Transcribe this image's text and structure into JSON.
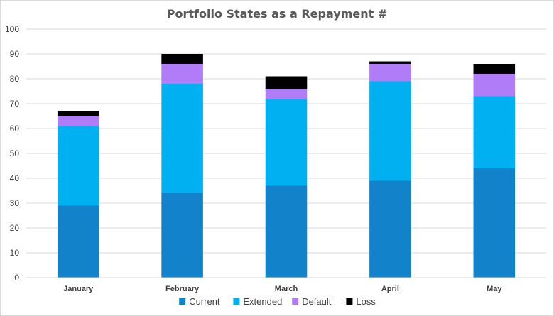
{
  "chart_data": {
    "type": "bar",
    "stacked": true,
    "title": "Portfolio States as a Repayment #",
    "xlabel": "",
    "ylabel": "",
    "categories": [
      "January",
      "February",
      "March",
      "April",
      "May"
    ],
    "ylim": [
      0,
      100
    ],
    "yticks": [
      0,
      10,
      20,
      30,
      40,
      50,
      60,
      70,
      80,
      90,
      100
    ],
    "grid": true,
    "legend_position": "bottom",
    "series": [
      {
        "name": "Current",
        "color": "#1283CA",
        "values": [
          29,
          34,
          37,
          39,
          44
        ]
      },
      {
        "name": "Extended",
        "color": "#00B0F0",
        "values": [
          32,
          44,
          35,
          40,
          29
        ]
      },
      {
        "name": "Default",
        "color": "#B07CF8",
        "values": [
          4,
          8,
          4,
          7,
          9
        ]
      },
      {
        "name": "Loss",
        "color": "#000000",
        "values": [
          2,
          4,
          5,
          1,
          4
        ]
      }
    ]
  }
}
